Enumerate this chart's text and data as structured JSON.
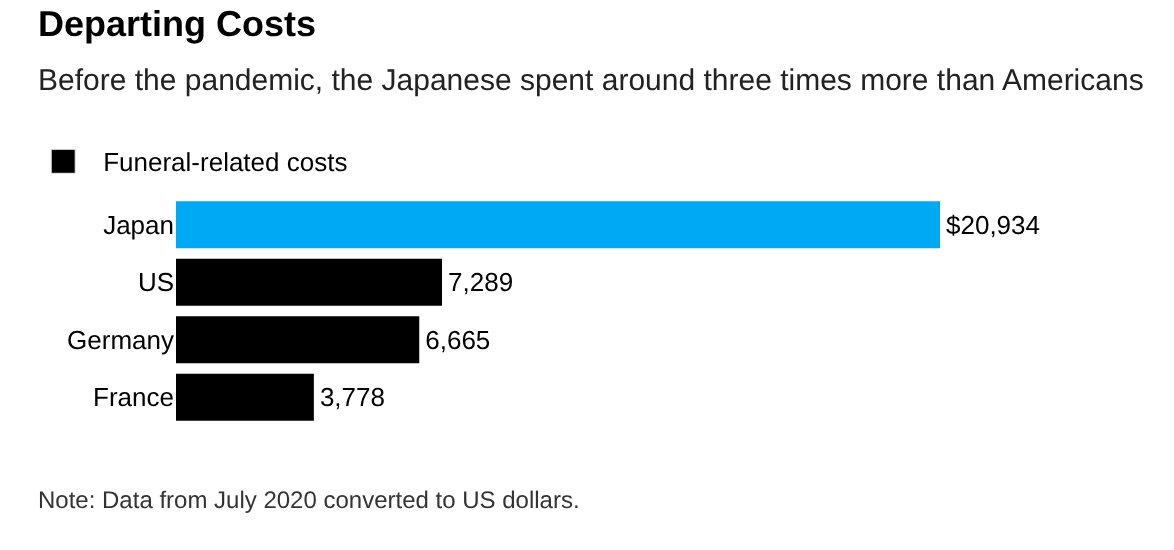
{
  "chart_data": {
    "type": "bar",
    "orientation": "horizontal",
    "title": "Departing Costs",
    "subtitle": "Before the pandemic, the Japanese spent around three times more than Americans",
    "categories": [
      "Japan",
      "US",
      "Germany",
      "France"
    ],
    "series": [
      {
        "name": "Funeral-related costs",
        "color": "#000000",
        "colors": [
          "#00a9f4",
          "#000000",
          "#000000",
          "#000000"
        ],
        "values": [
          20934,
          7289,
          6665,
          3778
        ],
        "value_labels": [
          "$20,934",
          "7,289",
          "6,665",
          "3,778"
        ]
      }
    ],
    "xlim": [
      0,
      20934
    ],
    "tick_labels": "y",
    "legend": "top left",
    "annotations": [
      "Note: Data from July 2020 converted to US dollars."
    ]
  }
}
